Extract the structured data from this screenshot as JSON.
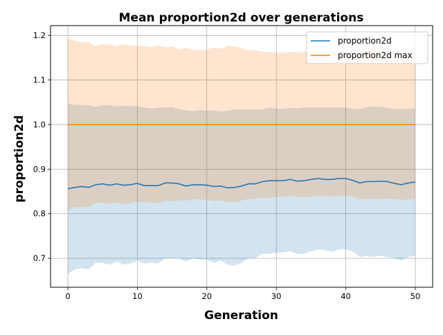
{
  "chart_data": {
    "type": "line",
    "title": "Mean proportion2d over generations",
    "xlabel": "Generation",
    "ylabel": "proportion2d",
    "xlim": [
      -2.5,
      52.5
    ],
    "ylim": [
      0.635,
      1.222
    ],
    "xticks": [
      0,
      10,
      20,
      30,
      40,
      50
    ],
    "yticks": [
      0.7,
      0.8,
      0.9,
      1.0,
      1.1,
      1.2
    ],
    "ytick_labels": [
      "0.7",
      "0.8",
      "0.9",
      "1.0",
      "1.1",
      "1.2"
    ],
    "grid": true,
    "legend_placement": "top-right",
    "x": [
      0,
      1,
      2,
      3,
      4,
      5,
      6,
      7,
      8,
      9,
      10,
      11,
      12,
      13,
      14,
      15,
      16,
      17,
      18,
      19,
      20,
      21,
      22,
      23,
      24,
      25,
      26,
      27,
      28,
      29,
      30,
      31,
      32,
      33,
      34,
      35,
      36,
      37,
      38,
      39,
      40,
      41,
      42,
      43,
      44,
      45,
      46,
      47,
      48,
      49,
      50
    ],
    "series": [
      {
        "name": "proportion2d",
        "color": "#1f77b4",
        "values": [
          0.856,
          0.859,
          0.861,
          0.859,
          0.865,
          0.867,
          0.864,
          0.867,
          0.864,
          0.865,
          0.868,
          0.863,
          0.863,
          0.863,
          0.869,
          0.869,
          0.867,
          0.862,
          0.865,
          0.865,
          0.864,
          0.861,
          0.862,
          0.858,
          0.859,
          0.862,
          0.867,
          0.867,
          0.872,
          0.874,
          0.874,
          0.874,
          0.877,
          0.873,
          0.874,
          0.877,
          0.879,
          0.877,
          0.877,
          0.879,
          0.879,
          0.875,
          0.869,
          0.872,
          0.872,
          0.873,
          0.872,
          0.868,
          0.865,
          0.869,
          0.871
        ],
        "band_lower": [
          0.665,
          0.675,
          0.678,
          0.675,
          0.69,
          0.69,
          0.685,
          0.693,
          0.686,
          0.688,
          0.695,
          0.688,
          0.69,
          0.688,
          0.7,
          0.699,
          0.7,
          0.692,
          0.7,
          0.697,
          0.697,
          0.69,
          0.695,
          0.685,
          0.684,
          0.69,
          0.7,
          0.7,
          0.71,
          0.71,
          0.712,
          0.713,
          0.716,
          0.71,
          0.71,
          0.716,
          0.72,
          0.718,
          0.715,
          0.72,
          0.72,
          0.715,
          0.703,
          0.705,
          0.703,
          0.706,
          0.703,
          0.7,
          0.695,
          0.703,
          0.706
        ],
        "band_upper": [
          1.048,
          1.044,
          1.044,
          1.043,
          1.04,
          1.044,
          1.043,
          1.041,
          1.042,
          1.042,
          1.041,
          1.038,
          1.036,
          1.038,
          1.038,
          1.039,
          1.034,
          1.032,
          1.03,
          1.033,
          1.031,
          1.032,
          1.029,
          1.031,
          1.034,
          1.034,
          1.034,
          1.034,
          1.034,
          1.038,
          1.036,
          1.035,
          1.038,
          1.036,
          1.038,
          1.038,
          1.038,
          1.038,
          1.038,
          1.038,
          1.038,
          1.035,
          1.035,
          1.039,
          1.041,
          1.04,
          1.038,
          1.035,
          1.035,
          1.035,
          1.036
        ]
      },
      {
        "name": "proportion2d max",
        "color": "#ff7f0e",
        "values": [
          1.0,
          1.0,
          1.0,
          1.0,
          1.0,
          1.0,
          1.0,
          1.0,
          1.0,
          1.0,
          1.0,
          1.0,
          1.0,
          1.0,
          1.0,
          1.0,
          1.0,
          1.0,
          1.0,
          1.0,
          1.0,
          1.0,
          1.0,
          1.0,
          1.0,
          1.0,
          1.0,
          1.0,
          1.0,
          1.0,
          1.0,
          1.0,
          1.0,
          1.0,
          1.0,
          1.0,
          1.0,
          1.0,
          1.0,
          1.0,
          1.0,
          1.0,
          1.0,
          1.0,
          1.0,
          1.0,
          1.0,
          1.0,
          1.0,
          1.0,
          1.0
        ],
        "band_lower": [
          0.808,
          0.815,
          0.815,
          0.815,
          0.824,
          0.825,
          0.822,
          0.825,
          0.822,
          0.823,
          0.827,
          0.825,
          0.826,
          0.823,
          0.83,
          0.828,
          0.83,
          0.829,
          0.833,
          0.832,
          0.831,
          0.828,
          0.83,
          0.826,
          0.826,
          0.829,
          0.834,
          0.833,
          0.836,
          0.835,
          0.838,
          0.838,
          0.84,
          0.838,
          0.836,
          0.838,
          0.84,
          0.839,
          0.839,
          0.84,
          0.84,
          0.838,
          0.832,
          0.834,
          0.833,
          0.833,
          0.834,
          0.833,
          0.831,
          0.832,
          0.834
        ],
        "band_upper": [
          1.195,
          1.188,
          1.185,
          1.185,
          1.177,
          1.18,
          1.18,
          1.176,
          1.18,
          1.178,
          1.176,
          1.176,
          1.173,
          1.178,
          1.173,
          1.175,
          1.169,
          1.172,
          1.168,
          1.168,
          1.168,
          1.173,
          1.17,
          1.177,
          1.175,
          1.172,
          1.167,
          1.167,
          1.163,
          1.163,
          1.162,
          1.162,
          1.163,
          1.162,
          1.163,
          1.164,
          1.163,
          1.163,
          1.164,
          1.163,
          1.164,
          1.163,
          1.167,
          1.167,
          1.168,
          1.167,
          1.167,
          1.163,
          1.164,
          1.165,
          1.166
        ]
      }
    ]
  }
}
